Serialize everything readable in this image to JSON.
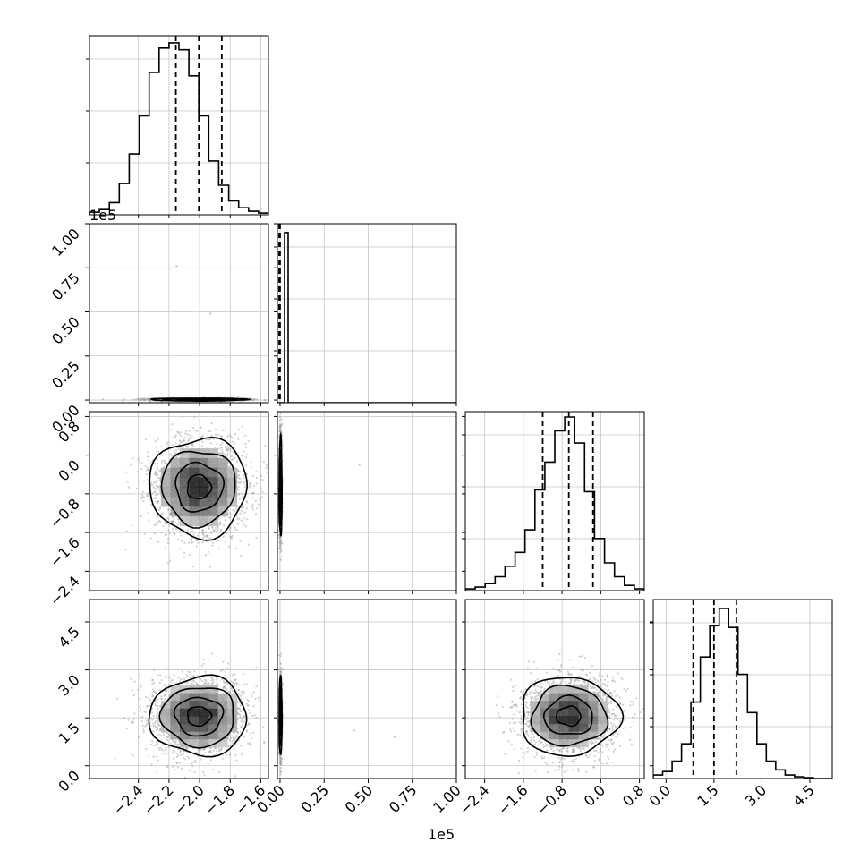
{
  "chart_data": {
    "type": "corner",
    "parameter_count": 4,
    "grid": true,
    "offset_labels": {
      "y_param1": "1e5",
      "x_param1": "1e5"
    },
    "parameters": [
      {
        "range": [
          -2.72,
          -1.55
        ],
        "ticks": [
          -2.4,
          -2.2,
          -2.0,
          -1.8,
          -1.6
        ],
        "tick_labels": [
          "−2.4",
          "−2.2",
          "−2.0",
          "−1.8",
          "−1.6"
        ],
        "quantiles": [
          -2.155,
          -2.005,
          -1.855
        ],
        "hist": [
          0.015,
          0.03,
          0.07,
          0.18,
          0.35,
          0.57,
          0.82,
          0.96,
          0.99,
          0.95,
          0.8,
          0.57,
          0.31,
          0.17,
          0.08,
          0.04,
          0.02,
          0.01
        ]
      },
      {
        "range": [
          -0.015,
          1.0
        ],
        "ticks": [
          0.0,
          0.25,
          0.5,
          0.75,
          1.0
        ],
        "tick_labels": [
          "0.00",
          "0.25",
          "0.50",
          "0.75",
          "1.00"
        ],
        "quantiles": [
          -0.005,
          -0.002,
          0.0
        ],
        "hist": [
          0.0,
          0.0,
          0.98,
          0.0,
          0.0,
          0.0,
          0.0,
          0.0,
          0.0,
          0.0,
          0.0,
          0.0,
          0.0,
          0.0,
          0.0,
          0.0,
          0.0,
          0.0,
          0.0,
          0.0,
          0.0,
          0.0,
          0.0,
          0.0,
          0.0,
          0.0,
          0.0,
          0.0,
          0.0,
          0.0,
          0.0,
          0.0,
          0.0,
          0.0,
          0.0,
          0.0,
          0.0,
          0.0,
          0.0,
          0.0,
          0.0,
          0.0,
          0.0,
          0.0,
          0.0,
          0.0,
          0.0,
          0.0,
          0.0,
          0.0
        ]
      },
      {
        "range": [
          -2.8,
          0.9
        ],
        "ticks": [
          -2.4,
          -1.6,
          -0.8,
          0.0,
          0.8
        ],
        "tick_labels": [
          "−2.4",
          "−1.6",
          "−0.8",
          "0.0",
          "0.8"
        ],
        "quantiles": [
          -1.2,
          -0.66,
          -0.16
        ],
        "hist": [
          0.01,
          0.02,
          0.04,
          0.08,
          0.14,
          0.22,
          0.35,
          0.58,
          0.74,
          0.92,
          1.0,
          0.85,
          0.57,
          0.3,
          0.16,
          0.08,
          0.03,
          0.01
        ]
      },
      {
        "range": [
          -0.4,
          5.2
        ],
        "ticks": [
          0.0,
          1.5,
          3.0,
          4.5
        ],
        "tick_labels": [
          "0.0",
          "1.5",
          "3.0",
          "4.5"
        ],
        "quantiles": [
          0.85,
          1.5,
          2.2
        ],
        "hist": [
          0.02,
          0.04,
          0.1,
          0.2,
          0.44,
          0.7,
          0.88,
          0.98,
          0.87,
          0.6,
          0.38,
          0.2,
          0.1,
          0.05,
          0.02,
          0.01,
          0.005,
          0.0,
          0.0
        ]
      }
    ],
    "pairs": [
      {
        "row": 1,
        "col": 0,
        "mean": [
          -2.005,
          0.003
        ],
        "sd": [
          0.155,
          0.004
        ],
        "rho": 0.0,
        "outliers": [
          [
            -2.15,
            0.76
          ],
          [
            -1.93,
            0.49
          ]
        ]
      },
      {
        "row": 2,
        "col": 0,
        "mean": [
          -2.005,
          -0.66
        ],
        "sd": [
          0.155,
          0.5
        ],
        "rho": 0.0,
        "outliers": []
      },
      {
        "row": 3,
        "col": 0,
        "mean": [
          -2.005,
          1.55
        ],
        "sd": [
          0.155,
          0.6
        ],
        "rho": 0.0,
        "outliers": []
      },
      {
        "row": 2,
        "col": 1,
        "mean": [
          0.003,
          -0.66
        ],
        "sd": [
          0.004,
          0.5
        ],
        "rho": 0.0,
        "outliers": [
          [
            0.45,
            -0.2
          ]
        ]
      },
      {
        "row": 3,
        "col": 1,
        "mean": [
          0.003,
          1.55
        ],
        "sd": [
          0.004,
          0.6
        ],
        "rho": 0.0,
        "outliers": [
          [
            0.42,
            1.1
          ],
          [
            0.65,
            0.9
          ]
        ]
      },
      {
        "row": 3,
        "col": 2,
        "mean": [
          -0.66,
          1.55
        ],
        "sd": [
          0.5,
          0.6
        ],
        "rho": 0.0,
        "outliers": []
      }
    ]
  }
}
